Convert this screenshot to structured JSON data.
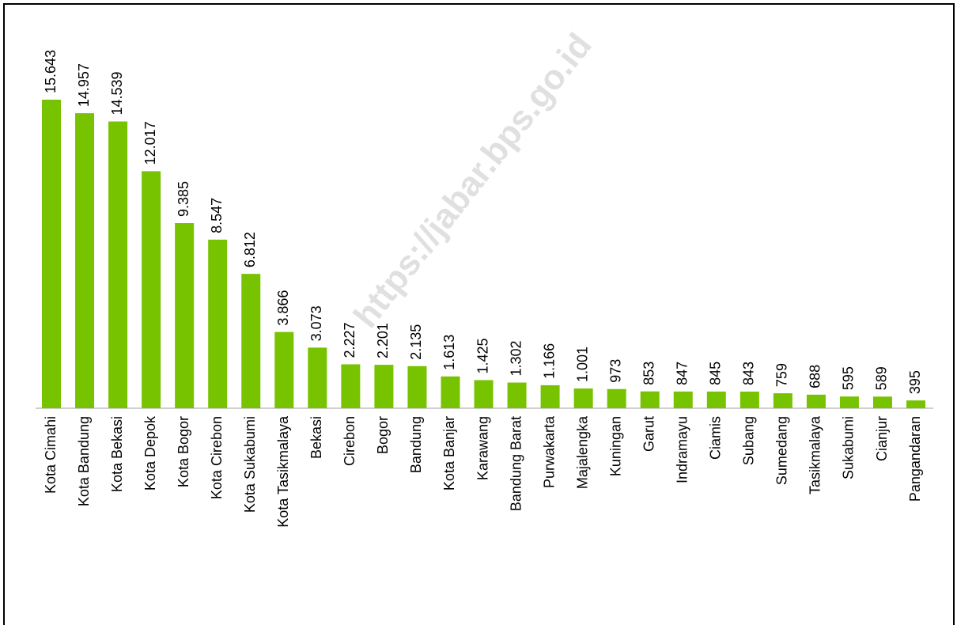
{
  "chart_data": {
    "type": "bar",
    "categories": [
      "Kota Cimahi",
      "Kota Bandung",
      "Kota Bekasi",
      "Kota Depok",
      "Kota Bogor",
      "Kota Cirebon",
      "Kota Sukabumi",
      "Kota Tasikmalaya",
      "Bekasi",
      "Cirebon",
      "Bogor",
      "Bandung",
      "Kota Banjar",
      "Karawang",
      "Bandung Barat",
      "Purwakarta",
      "Majalengka",
      "Kuningan",
      "Garut",
      "Indramayu",
      "Ciamis",
      "Subang",
      "Sumedang",
      "Tasikmalaya",
      "Sukabumi",
      "Cianjur",
      "Pangandaran"
    ],
    "values": [
      15643,
      14957,
      14539,
      12017,
      9385,
      8547,
      6812,
      3866,
      3073,
      2227,
      2201,
      2135,
      1613,
      1425,
      1302,
      1166,
      1001,
      973,
      853,
      847,
      845,
      843,
      759,
      688,
      595,
      589,
      395
    ],
    "value_labels": [
      "15.643",
      "14.957",
      "14.539",
      "12.017",
      "9.385",
      "8.547",
      "6.812",
      "3.866",
      "3.073",
      "2.227",
      "2.201",
      "2.135",
      "1.613",
      "1.425",
      "1.302",
      "1.166",
      "1.001",
      "973",
      "853",
      "847",
      "845",
      "843",
      "759",
      "688",
      "595",
      "589",
      "395"
    ],
    "color": "#77c300",
    "watermark": "https://jabar.bps.go.id"
  }
}
